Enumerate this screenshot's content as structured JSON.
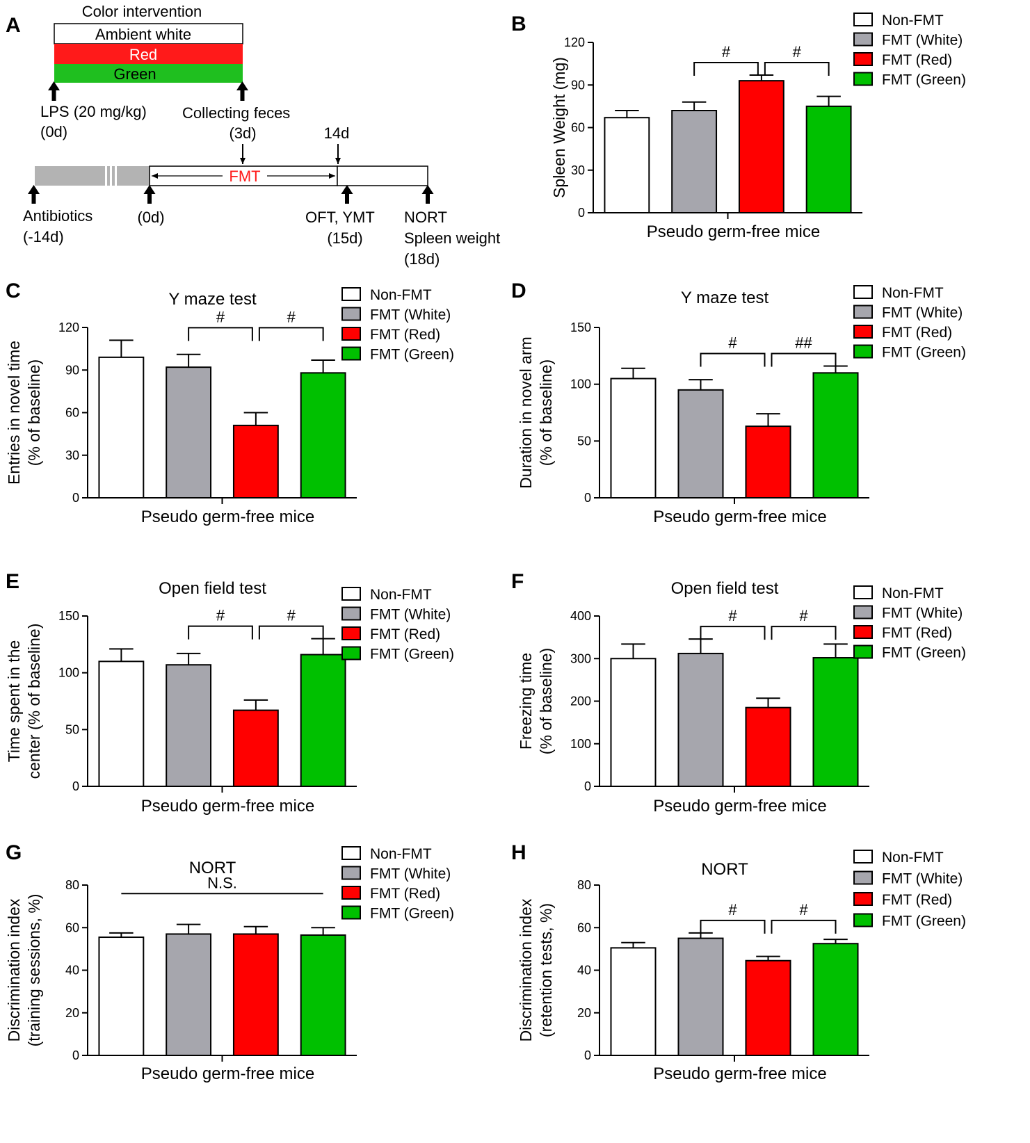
{
  "colors": {
    "Non-FMT": "#ffffff",
    "FMT (White)": "#a6a6ad",
    "FMT (Red)": "#ff0000",
    "FMT (Green)": "#00c000",
    "timeline_red": "#ff1a1a",
    "timeline_green": "#1fbf1f",
    "antibiotic_gray": "#b3b3b3"
  },
  "timeline": {
    "panel_letter": "A",
    "color_intervention_title": "Color intervention",
    "bars": [
      "Ambient white",
      "Red",
      "Green"
    ],
    "lps_label": "LPS (20 mg/kg)",
    "lps_day": "(0d)",
    "collecting_label": "Collecting feces",
    "collecting_day": "(3d)",
    "day14": "14d",
    "fmt_label": "FMT",
    "antibiotics_label": "Antibiotics",
    "antibiotics_day": "(-14d)",
    "fmt_start_day": "(0d)",
    "oft_label": "OFT, YMT",
    "oft_day": "(15d)",
    "nort_label": "NORT",
    "spleen_label": "Spleen weight",
    "nort_day": "(18d)"
  },
  "chart_data": [
    {
      "panel": "B",
      "type": "bar",
      "title": "",
      "xlabel": "Pseudo germ-free mice",
      "ylabel": [
        "Spleen Weight (mg)"
      ],
      "ylim": [
        0,
        120
      ],
      "yticks": [
        0,
        30,
        60,
        90,
        120
      ],
      "categories": [
        "Non-FMT",
        "FMT (White)",
        "FMT (Red)",
        "FMT (Green)"
      ],
      "values": [
        67,
        72,
        93,
        75
      ],
      "errors": [
        5,
        6,
        4,
        7
      ],
      "significance": [
        {
          "label": "#",
          "from": 1,
          "to": 2
        },
        {
          "label": "#",
          "from": 3,
          "to": 2
        }
      ],
      "legend": [
        "Non-FMT",
        "FMT (White)",
        "FMT (Red)",
        "FMT (Green)"
      ]
    },
    {
      "panel": "C",
      "type": "bar",
      "title": "Y maze test",
      "xlabel": "Pseudo germ-free mice",
      "ylabel": [
        "Entries in novel time",
        "(% of baseline)"
      ],
      "ylim": [
        0,
        120
      ],
      "yticks": [
        0,
        30,
        60,
        90,
        120
      ],
      "categories": [
        "Non-FMT",
        "FMT (White)",
        "FMT (Red)",
        "FMT (Green)"
      ],
      "values": [
        99,
        92,
        51,
        88
      ],
      "errors": [
        12,
        9,
        9,
        9
      ],
      "significance": [
        {
          "label": "#",
          "from": 1,
          "to": 2
        },
        {
          "label": "#",
          "from": 3,
          "to": 2
        }
      ],
      "legend": [
        "Non-FMT",
        "FMT (White)",
        "FMT (Red)",
        "FMT (Green)"
      ]
    },
    {
      "panel": "D",
      "type": "bar",
      "title": "Y maze test",
      "xlabel": "Pseudo germ-free mice",
      "ylabel": [
        "Duration in novel arm",
        "(% of baseline)"
      ],
      "ylim": [
        0,
        150
      ],
      "yticks": [
        0,
        50,
        100,
        150
      ],
      "categories": [
        "Non-FMT",
        "FMT (White)",
        "FMT (Red)",
        "FMT (Green)"
      ],
      "values": [
        105,
        95,
        63,
        110
      ],
      "errors": [
        9,
        9,
        11,
        6
      ],
      "significance": [
        {
          "label": "#",
          "from": 1,
          "to": 2
        },
        {
          "label": "##",
          "from": 3,
          "to": 2
        }
      ],
      "legend": [
        "Non-FMT",
        "FMT (White)",
        "FMT (Red)",
        "FMT (Green)"
      ]
    },
    {
      "panel": "E",
      "type": "bar",
      "title": "Open field test",
      "xlabel": "Pseudo germ-free mice",
      "ylabel": [
        "Time spent in the",
        "center (% of baseline)"
      ],
      "ylim": [
        0,
        150
      ],
      "yticks": [
        0,
        50,
        100,
        150
      ],
      "categories": [
        "Non-FMT",
        "FMT (White)",
        "FMT (Red)",
        "FMT (Green)"
      ],
      "values": [
        110,
        107,
        67,
        116
      ],
      "errors": [
        11,
        10,
        9,
        14
      ],
      "significance": [
        {
          "label": "#",
          "from": 1,
          "to": 2
        },
        {
          "label": "#",
          "from": 3,
          "to": 2
        }
      ],
      "legend": [
        "Non-FMT",
        "FMT (White)",
        "FMT (Red)",
        "FMT (Green)"
      ]
    },
    {
      "panel": "F",
      "type": "bar",
      "title": "Open field test",
      "xlabel": "Pseudo germ-free mice",
      "ylabel": [
        "Freezing time",
        "(% of baseline)"
      ],
      "ylim": [
        0,
        400
      ],
      "yticks": [
        0,
        100,
        200,
        300,
        400
      ],
      "categories": [
        "Non-FMT",
        "FMT (White)",
        "FMT (Red)",
        "FMT (Green)"
      ],
      "values": [
        300,
        312,
        185,
        302
      ],
      "errors": [
        34,
        34,
        22,
        32
      ],
      "significance": [
        {
          "label": "#",
          "from": 1,
          "to": 2
        },
        {
          "label": "#",
          "from": 3,
          "to": 2
        }
      ],
      "legend": [
        "Non-FMT",
        "FMT (White)",
        "FMT (Red)",
        "FMT (Green)"
      ]
    },
    {
      "panel": "G",
      "type": "bar",
      "title": "NORT",
      "xlabel": "Pseudo germ-free mice",
      "ylabel": [
        "Discrimination index",
        "(training sessions, %)"
      ],
      "ylim": [
        0,
        80
      ],
      "yticks": [
        0,
        20,
        40,
        60,
        80
      ],
      "categories": [
        "Non-FMT",
        "FMT (White)",
        "FMT (Red)",
        "FMT (Green)"
      ],
      "values": [
        55.5,
        57,
        57,
        56.5
      ],
      "errors": [
        2,
        4.5,
        3.5,
        3.5
      ],
      "ns_label": "N.S.",
      "legend": [
        "Non-FMT",
        "FMT (White)",
        "FMT (Red)",
        "FMT (Green)"
      ]
    },
    {
      "panel": "H",
      "type": "bar",
      "title": "NORT",
      "xlabel": "Pseudo germ-free mice",
      "ylabel": [
        "Discrimination index",
        "(retention tests, %)"
      ],
      "ylim": [
        0,
        80
      ],
      "yticks": [
        0,
        20,
        40,
        60,
        80
      ],
      "categories": [
        "Non-FMT",
        "FMT (White)",
        "FMT (Red)",
        "FMT (Green)"
      ],
      "values": [
        50.5,
        55,
        44.5,
        52.5
      ],
      "errors": [
        2.5,
        2.5,
        2,
        2
      ],
      "significance": [
        {
          "label": "#",
          "from": 1,
          "to": 2
        },
        {
          "label": "#",
          "from": 3,
          "to": 2
        }
      ],
      "legend": [
        "Non-FMT",
        "FMT (White)",
        "FMT (Red)",
        "FMT (Green)"
      ]
    }
  ]
}
